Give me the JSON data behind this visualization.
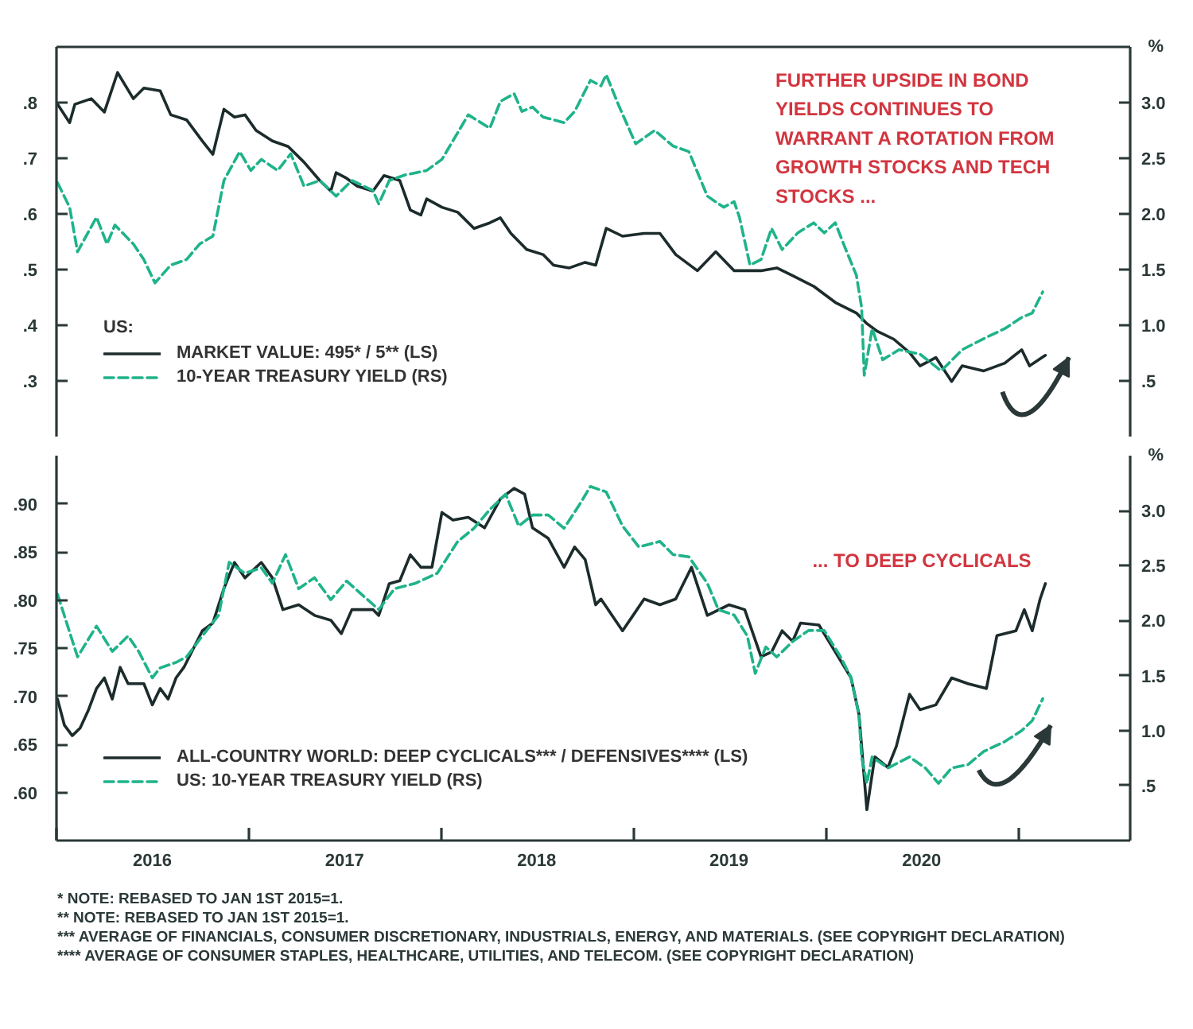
{
  "chart_data": [
    {
      "type": "line",
      "annotations": [
        "FURTHER UPSIDE IN BOND YIELDS CONTINUES TO WARRANT A ROTATION FROM GROWTH STOCKS AND TECH STOCKS ..."
      ],
      "y2label": "%",
      "legend_title": "US:",
      "legend": "bottom left",
      "tick_labels": "y",
      "xlim": [
        "2016-01-01",
        "2021-08-01"
      ],
      "ylim": [
        0.2,
        0.9
      ],
      "yticks": [
        {
          "value": 0.3,
          "label": ".3"
        },
        {
          "value": 0.4,
          "label": ".4"
        },
        {
          "value": 0.5,
          "label": ".5"
        },
        {
          "value": 0.6,
          "label": ".6"
        },
        {
          "value": 0.7,
          "label": ".7"
        },
        {
          "value": 0.8,
          "label": ".8"
        }
      ],
      "y2lim": [
        0,
        3.5
      ],
      "y2ticks": [
        {
          "value": 0.5,
          "label": ".5"
        },
        {
          "value": 1,
          "label": "1.0"
        },
        {
          "value": 1.5,
          "label": "1.5"
        },
        {
          "value": 2,
          "label": "2.0"
        },
        {
          "value": 2.5,
          "label": "2.5"
        },
        {
          "value": 3,
          "label": "3.0"
        }
      ],
      "series": [
        {
          "name": "MARKET VALUE: 495* / 5** (LS)",
          "color": "#1c2b2b",
          "line_style": "solid",
          "x": [
            "2016-01-03",
            "2016-01-26",
            "2016-02-05",
            "2016-03-07",
            "2016-04-01",
            "2016-04-26",
            "2016-05-26",
            "2016-06-15",
            "2016-07-16",
            "2016-08-05",
            "2016-09-04",
            "2016-10-04",
            "2016-10-24",
            "2016-11-14",
            "2016-12-04",
            "2016-12-24",
            "2017-01-14",
            "2017-02-14",
            "2017-03-16",
            "2017-04-15",
            "2017-05-15",
            "2017-06-05",
            "2017-06-15",
            "2017-07-05",
            "2017-07-25",
            "2017-08-24",
            "2017-09-14",
            "2017-10-14",
            "2017-11-03",
            "2017-11-23",
            "2017-12-04",
            "2018-01-02",
            "2018-02-01",
            "2018-03-04",
            "2018-04-03",
            "2018-04-23",
            "2018-05-13",
            "2018-06-12",
            "2018-07-13",
            "2018-08-02",
            "2018-09-01",
            "2018-10-01",
            "2018-10-21",
            "2018-11-10",
            "2018-12-11",
            "2019-01-21",
            "2019-02-20",
            "2019-03-22",
            "2019-05-02",
            "2019-06-06",
            "2019-07-11",
            "2019-08-31",
            "2019-09-30",
            "2019-10-30",
            "2019-12-09",
            "2020-01-19",
            "2020-02-28",
            "2020-03-19",
            "2020-04-08",
            "2020-05-09",
            "2020-06-08",
            "2020-06-28",
            "2020-07-28",
            "2020-08-27",
            "2020-09-16",
            "2020-10-27",
            "2020-12-06",
            "2021-01-07",
            "2021-01-22",
            "2021-02-21"
          ],
          "values": [
            0.797,
            0.764,
            0.797,
            0.807,
            0.783,
            0.854,
            0.807,
            0.826,
            0.821,
            0.778,
            0.769,
            0.731,
            0.707,
            0.788,
            0.774,
            0.778,
            0.75,
            0.731,
            0.721,
            0.693,
            0.66,
            0.641,
            0.674,
            0.664,
            0.65,
            0.641,
            0.669,
            0.66,
            0.607,
            0.598,
            0.627,
            0.612,
            0.603,
            0.574,
            0.584,
            0.593,
            0.565,
            0.536,
            0.527,
            0.508,
            0.503,
            0.513,
            0.508,
            0.574,
            0.56,
            0.565,
            0.565,
            0.527,
            0.498,
            0.532,
            0.498,
            0.498,
            0.503,
            0.489,
            0.47,
            0.441,
            0.422,
            0.403,
            0.389,
            0.375,
            0.351,
            0.327,
            0.342,
            0.299,
            0.327,
            0.318,
            0.332,
            0.356,
            0.327,
            0.346
          ]
        },
        {
          "name": "10-YEAR TREASURY YIELD (RS)",
          "color": "#1fb38a",
          "line_style": "dashed",
          "axis": "y2",
          "x": [
            "2016-01-03",
            "2016-01-26",
            "2016-02-10",
            "2016-03-17",
            "2016-04-06",
            "2016-04-21",
            "2016-05-26",
            "2016-06-15",
            "2016-07-06",
            "2016-08-05",
            "2016-09-04",
            "2016-09-29",
            "2016-10-24",
            "2016-11-14",
            "2016-12-14",
            "2017-01-04",
            "2017-01-24",
            "2017-02-24",
            "2017-03-21",
            "2017-04-15",
            "2017-05-15",
            "2017-06-15",
            "2017-07-15",
            "2017-08-24",
            "2017-09-04",
            "2017-09-24",
            "2017-10-24",
            "2017-12-04",
            "2018-01-02",
            "2018-02-01",
            "2018-02-21",
            "2018-04-03",
            "2018-04-23",
            "2018-05-19",
            "2018-06-03",
            "2018-06-23",
            "2018-07-13",
            "2018-08-22",
            "2018-09-11",
            "2018-10-11",
            "2018-10-31",
            "2018-11-10",
            "2018-12-05",
            "2019-01-05",
            "2019-02-10",
            "2019-03-17",
            "2019-04-16",
            "2019-05-21",
            "2019-06-21",
            "2019-07-11",
            "2019-07-21",
            "2019-08-10",
            "2019-08-31",
            "2019-09-20",
            "2019-10-10",
            "2019-11-09",
            "2019-12-09",
            "2019-12-29",
            "2020-01-19",
            "2020-02-08",
            "2020-02-28",
            "2020-03-09",
            "2020-03-14",
            "2020-03-29",
            "2020-04-18",
            "2020-05-19",
            "2020-06-28",
            "2020-08-07",
            "2020-09-16",
            "2020-10-27",
            "2020-12-06",
            "2021-01-07",
            "2021-01-27",
            "2021-02-16"
          ],
          "values": [
            2.28,
            2.06,
            1.66,
            1.97,
            1.73,
            1.9,
            1.73,
            1.59,
            1.38,
            1.54,
            1.59,
            1.73,
            1.8,
            2.3,
            2.56,
            2.39,
            2.49,
            2.39,
            2.54,
            2.25,
            2.3,
            2.16,
            2.3,
            2.21,
            2.09,
            2.3,
            2.35,
            2.39,
            2.49,
            2.73,
            2.89,
            2.77,
            3.01,
            3.08,
            2.92,
            2.96,
            2.87,
            2.82,
            2.92,
            3.2,
            3.15,
            3.25,
            2.96,
            2.63,
            2.75,
            2.61,
            2.56,
            2.16,
            2.06,
            2.11,
            1.97,
            1.54,
            1.59,
            1.87,
            1.68,
            1.83,
            1.92,
            1.83,
            1.92,
            1.68,
            1.45,
            1.16,
            0.55,
            0.97,
            0.69,
            0.78,
            0.74,
            0.59,
            0.78,
            0.88,
            0.97,
            1.07,
            1.11,
            1.3
          ]
        }
      ]
    },
    {
      "type": "line",
      "annotations": [
        "... TO DEEP CYCLICALS",
        "* NOTE: REBASED TO JAN 1ST 2015=1.",
        "** NOTE: REBASED TO JAN 1ST 2015=1.",
        "*** AVERAGE OF FINANCIALS, CONSUMER DISCRETIONARY, INDUSTRIALS, ENERGY, AND MATERIALS. (SEE COPYRIGHT DECLARATION)",
        "**** AVERAGE OF CONSUMER STAPLES, HEALTHCARE, UTILITIES, AND TELECOM. (SEE COPYRIGHT DECLARATION)"
      ],
      "y2label": "%",
      "legend": "bottom left",
      "xlim": [
        "2016-01-01",
        "2021-08-01"
      ],
      "xticks": [
        {
          "value": "2016-01-01",
          "label": null
        },
        {
          "value": "2016-07-01",
          "label": "2016"
        },
        {
          "value": "2017-01-01",
          "label": null
        },
        {
          "value": "2017-07-01",
          "label": "2017"
        },
        {
          "value": "2018-01-01",
          "label": null
        },
        {
          "value": "2018-07-01",
          "label": "2018"
        },
        {
          "value": "2019-01-01",
          "label": null
        },
        {
          "value": "2019-07-01",
          "label": "2019"
        },
        {
          "value": "2020-01-01",
          "label": null
        },
        {
          "value": "2020-07-01",
          "label": "2020"
        },
        {
          "value": "2021-01-01",
          "label": null
        }
      ],
      "ylim": [
        0.55,
        0.95
      ],
      "yticks": [
        {
          "value": 0.6,
          "label": ".60"
        },
        {
          "value": 0.65,
          "label": ".65"
        },
        {
          "value": 0.7,
          "label": ".70"
        },
        {
          "value": 0.75,
          "label": ".75"
        },
        {
          "value": 0.8,
          "label": ".80"
        },
        {
          "value": 0.85,
          "label": ".85"
        },
        {
          "value": 0.9,
          "label": ".90"
        }
      ],
      "y2lim": [
        0,
        3.5
      ],
      "y2ticks": [
        {
          "value": 0.5,
          "label": ".5"
        },
        {
          "value": 1,
          "label": "1.0"
        },
        {
          "value": 1.5,
          "label": "1.5"
        },
        {
          "value": 2,
          "label": "2.0"
        },
        {
          "value": 2.5,
          "label": "2.5"
        },
        {
          "value": 3,
          "label": "3.0"
        }
      ],
      "series": [
        {
          "name": "ALL-COUNTRY WORLD: DEEP CYCLICALS*** / DEFENSIVES**** (LS)",
          "color": "#1c2b2b",
          "line_style": "solid",
          "x": [
            "2016-01-03",
            "2016-01-16",
            "2016-01-31",
            "2016-02-15",
            "2016-03-02",
            "2016-03-17",
            "2016-04-01",
            "2016-04-16",
            "2016-05-01",
            "2016-05-16",
            "2016-06-15",
            "2016-07-01",
            "2016-07-16",
            "2016-07-31",
            "2016-08-15",
            "2016-08-30",
            "2016-10-04",
            "2016-10-24",
            "2016-11-14",
            "2016-12-04",
            "2016-12-24",
            "2017-01-24",
            "2017-02-14",
            "2017-03-06",
            "2017-04-05",
            "2017-05-05",
            "2017-06-05",
            "2017-06-25",
            "2017-07-15",
            "2017-08-24",
            "2017-09-04",
            "2017-09-24",
            "2017-10-14",
            "2017-11-03",
            "2017-11-23",
            "2017-12-14",
            "2018-01-02",
            "2018-01-23",
            "2018-02-21",
            "2018-03-24",
            "2018-04-23",
            "2018-05-19",
            "2018-06-08",
            "2018-06-23",
            "2018-07-23",
            "2018-08-22",
            "2018-09-11",
            "2018-10-01",
            "2018-10-21",
            "2018-10-31",
            "2018-12-11",
            "2018-12-31",
            "2019-01-21",
            "2019-02-20",
            "2019-03-22",
            "2019-04-21",
            "2019-05-21",
            "2019-07-01",
            "2019-07-31",
            "2019-08-31",
            "2019-09-20",
            "2019-10-10",
            "2019-10-30",
            "2019-11-14",
            "2019-12-19",
            "2020-01-19",
            "2020-02-18",
            "2020-03-04",
            "2020-03-19",
            "2020-04-03",
            "2020-04-28",
            "2020-05-14",
            "2020-06-08",
            "2020-06-28",
            "2020-07-28",
            "2020-08-27",
            "2020-09-27",
            "2020-11-01",
            "2020-11-21",
            "2020-12-27",
            "2021-01-12",
            "2021-01-27",
            "2021-02-11",
            "2021-02-21"
          ],
          "values": [
            0.697,
            0.67,
            0.659,
            0.667,
            0.686,
            0.708,
            0.719,
            0.697,
            0.73,
            0.713,
            0.713,
            0.691,
            0.708,
            0.697,
            0.719,
            0.73,
            0.768,
            0.776,
            0.812,
            0.839,
            0.823,
            0.839,
            0.823,
            0.79,
            0.795,
            0.784,
            0.779,
            0.765,
            0.79,
            0.79,
            0.784,
            0.817,
            0.82,
            0.847,
            0.834,
            0.834,
            0.891,
            0.883,
            0.886,
            0.875,
            0.905,
            0.916,
            0.91,
            0.875,
            0.864,
            0.834,
            0.855,
            0.842,
            0.795,
            0.801,
            0.768,
            0.784,
            0.801,
            0.795,
            0.801,
            0.834,
            0.784,
            0.795,
            0.79,
            0.741,
            0.746,
            0.768,
            0.757,
            0.776,
            0.774,
            0.746,
            0.719,
            0.681,
            0.582,
            0.637,
            0.626,
            0.648,
            0.702,
            0.686,
            0.691,
            0.719,
            0.713,
            0.708,
            0.763,
            0.768,
            0.79,
            0.768,
            0.801,
            0.817
          ]
        },
        {
          "name": "US: 10-YEAR TREASURY YIELD (RS)",
          "color": "#1fb38a",
          "line_style": "dashed",
          "axis": "y2",
          "x": [
            "2016-01-03",
            "2016-02-10",
            "2016-03-17",
            "2016-04-16",
            "2016-05-16",
            "2016-06-05",
            "2016-07-01",
            "2016-07-16",
            "2016-08-15",
            "2016-09-04",
            "2016-10-04",
            "2016-11-04",
            "2016-11-24",
            "2016-12-24",
            "2017-01-24",
            "2017-02-14",
            "2017-03-11",
            "2017-04-05",
            "2017-05-05",
            "2017-06-05",
            "2017-07-05",
            "2017-08-14",
            "2017-09-04",
            "2017-10-04",
            "2017-11-13",
            "2017-12-24",
            "2018-02-01",
            "2018-03-04",
            "2018-04-03",
            "2018-05-03",
            "2018-05-28",
            "2018-06-23",
            "2018-07-23",
            "2018-08-22",
            "2018-09-21",
            "2018-10-11",
            "2018-11-10",
            "2018-12-11",
            "2019-01-11",
            "2019-02-20",
            "2019-03-17",
            "2019-04-16",
            "2019-05-21",
            "2019-06-11",
            "2019-07-11",
            "2019-08-05",
            "2019-08-20",
            "2019-09-09",
            "2019-09-30",
            "2019-10-30",
            "2019-11-29",
            "2019-12-29",
            "2020-01-29",
            "2020-02-18",
            "2020-03-04",
            "2020-03-09",
            "2020-03-19",
            "2020-03-29",
            "2020-04-28",
            "2020-06-08",
            "2020-07-08",
            "2020-08-02",
            "2020-08-27",
            "2020-09-27",
            "2020-10-27",
            "2020-12-06",
            "2021-01-07",
            "2021-01-27",
            "2021-02-16"
          ],
          "values": [
            2.24,
            1.67,
            1.95,
            1.72,
            1.86,
            1.72,
            1.48,
            1.57,
            1.62,
            1.67,
            1.86,
            2.05,
            2.53,
            2.43,
            2.48,
            2.34,
            2.6,
            2.29,
            2.39,
            2.19,
            2.36,
            2.19,
            2.1,
            2.29,
            2.34,
            2.43,
            2.72,
            2.84,
            3.01,
            3.15,
            2.86,
            2.96,
            2.96,
            2.84,
            3.06,
            3.22,
            3.17,
            2.86,
            2.67,
            2.72,
            2.6,
            2.58,
            2.34,
            2.1,
            2.05,
            1.86,
            1.52,
            1.76,
            1.67,
            1.81,
            1.91,
            1.91,
            1.67,
            1.48,
            1.14,
            0.76,
            0.52,
            0.76,
            0.66,
            0.76,
            0.66,
            0.52,
            0.66,
            0.69,
            0.81,
            0.9,
            1.0,
            1.09,
            1.29
          ]
        }
      ]
    }
  ]
}
